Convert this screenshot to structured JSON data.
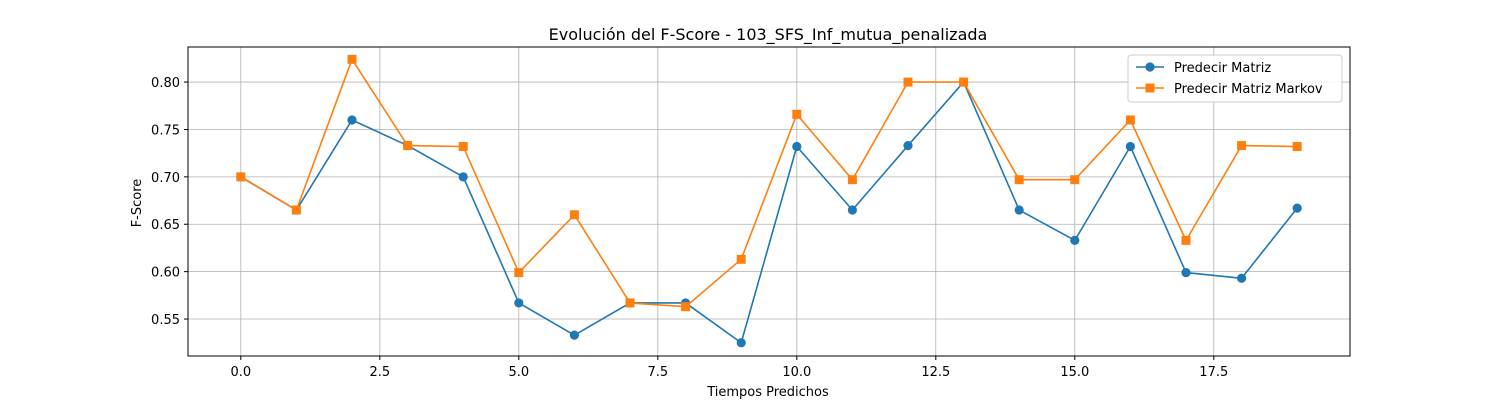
{
  "chart_data": {
    "type": "line",
    "title": "Evolución del F-Score - 103_SFS_Inf_mutua_penalizada",
    "xlabel": "Tiempos Predichos",
    "ylabel": "F-Score",
    "xlim": [
      -0.95,
      19.95
    ],
    "ylim": [
      0.511,
      0.837
    ],
    "xticks": [
      0.0,
      2.5,
      5.0,
      7.5,
      10.0,
      12.5,
      15.0,
      17.5
    ],
    "xtick_labels": [
      "0.0",
      "2.5",
      "5.0",
      "7.5",
      "10.0",
      "12.5",
      "15.0",
      "17.5"
    ],
    "yticks": [
      0.55,
      0.6,
      0.65,
      0.7,
      0.75,
      0.8
    ],
    "ytick_labels": [
      "0.55",
      "0.60",
      "0.65",
      "0.70",
      "0.75",
      "0.80"
    ],
    "grid": true,
    "legend_position": "top-right",
    "x": [
      0,
      1,
      2,
      3,
      4,
      5,
      6,
      7,
      8,
      9,
      10,
      11,
      12,
      13,
      14,
      15,
      16,
      17,
      18,
      19
    ],
    "series": [
      {
        "name": "Predecir Matriz",
        "color": "#1f77b4",
        "marker": "circle",
        "values": [
          0.7,
          0.665,
          0.76,
          0.733,
          0.7,
          0.567,
          0.533,
          0.567,
          0.567,
          0.525,
          0.732,
          0.665,
          0.733,
          0.8,
          0.665,
          0.633,
          0.732,
          0.599,
          0.593,
          0.667
        ]
      },
      {
        "name": "Predecir Matriz Markov",
        "color": "#ff7f0e",
        "marker": "square",
        "values": [
          0.7,
          0.665,
          0.824,
          0.733,
          0.732,
          0.599,
          0.66,
          0.567,
          0.563,
          0.613,
          0.766,
          0.697,
          0.8,
          0.8,
          0.697,
          0.697,
          0.76,
          0.633,
          0.733,
          0.732
        ]
      }
    ]
  }
}
